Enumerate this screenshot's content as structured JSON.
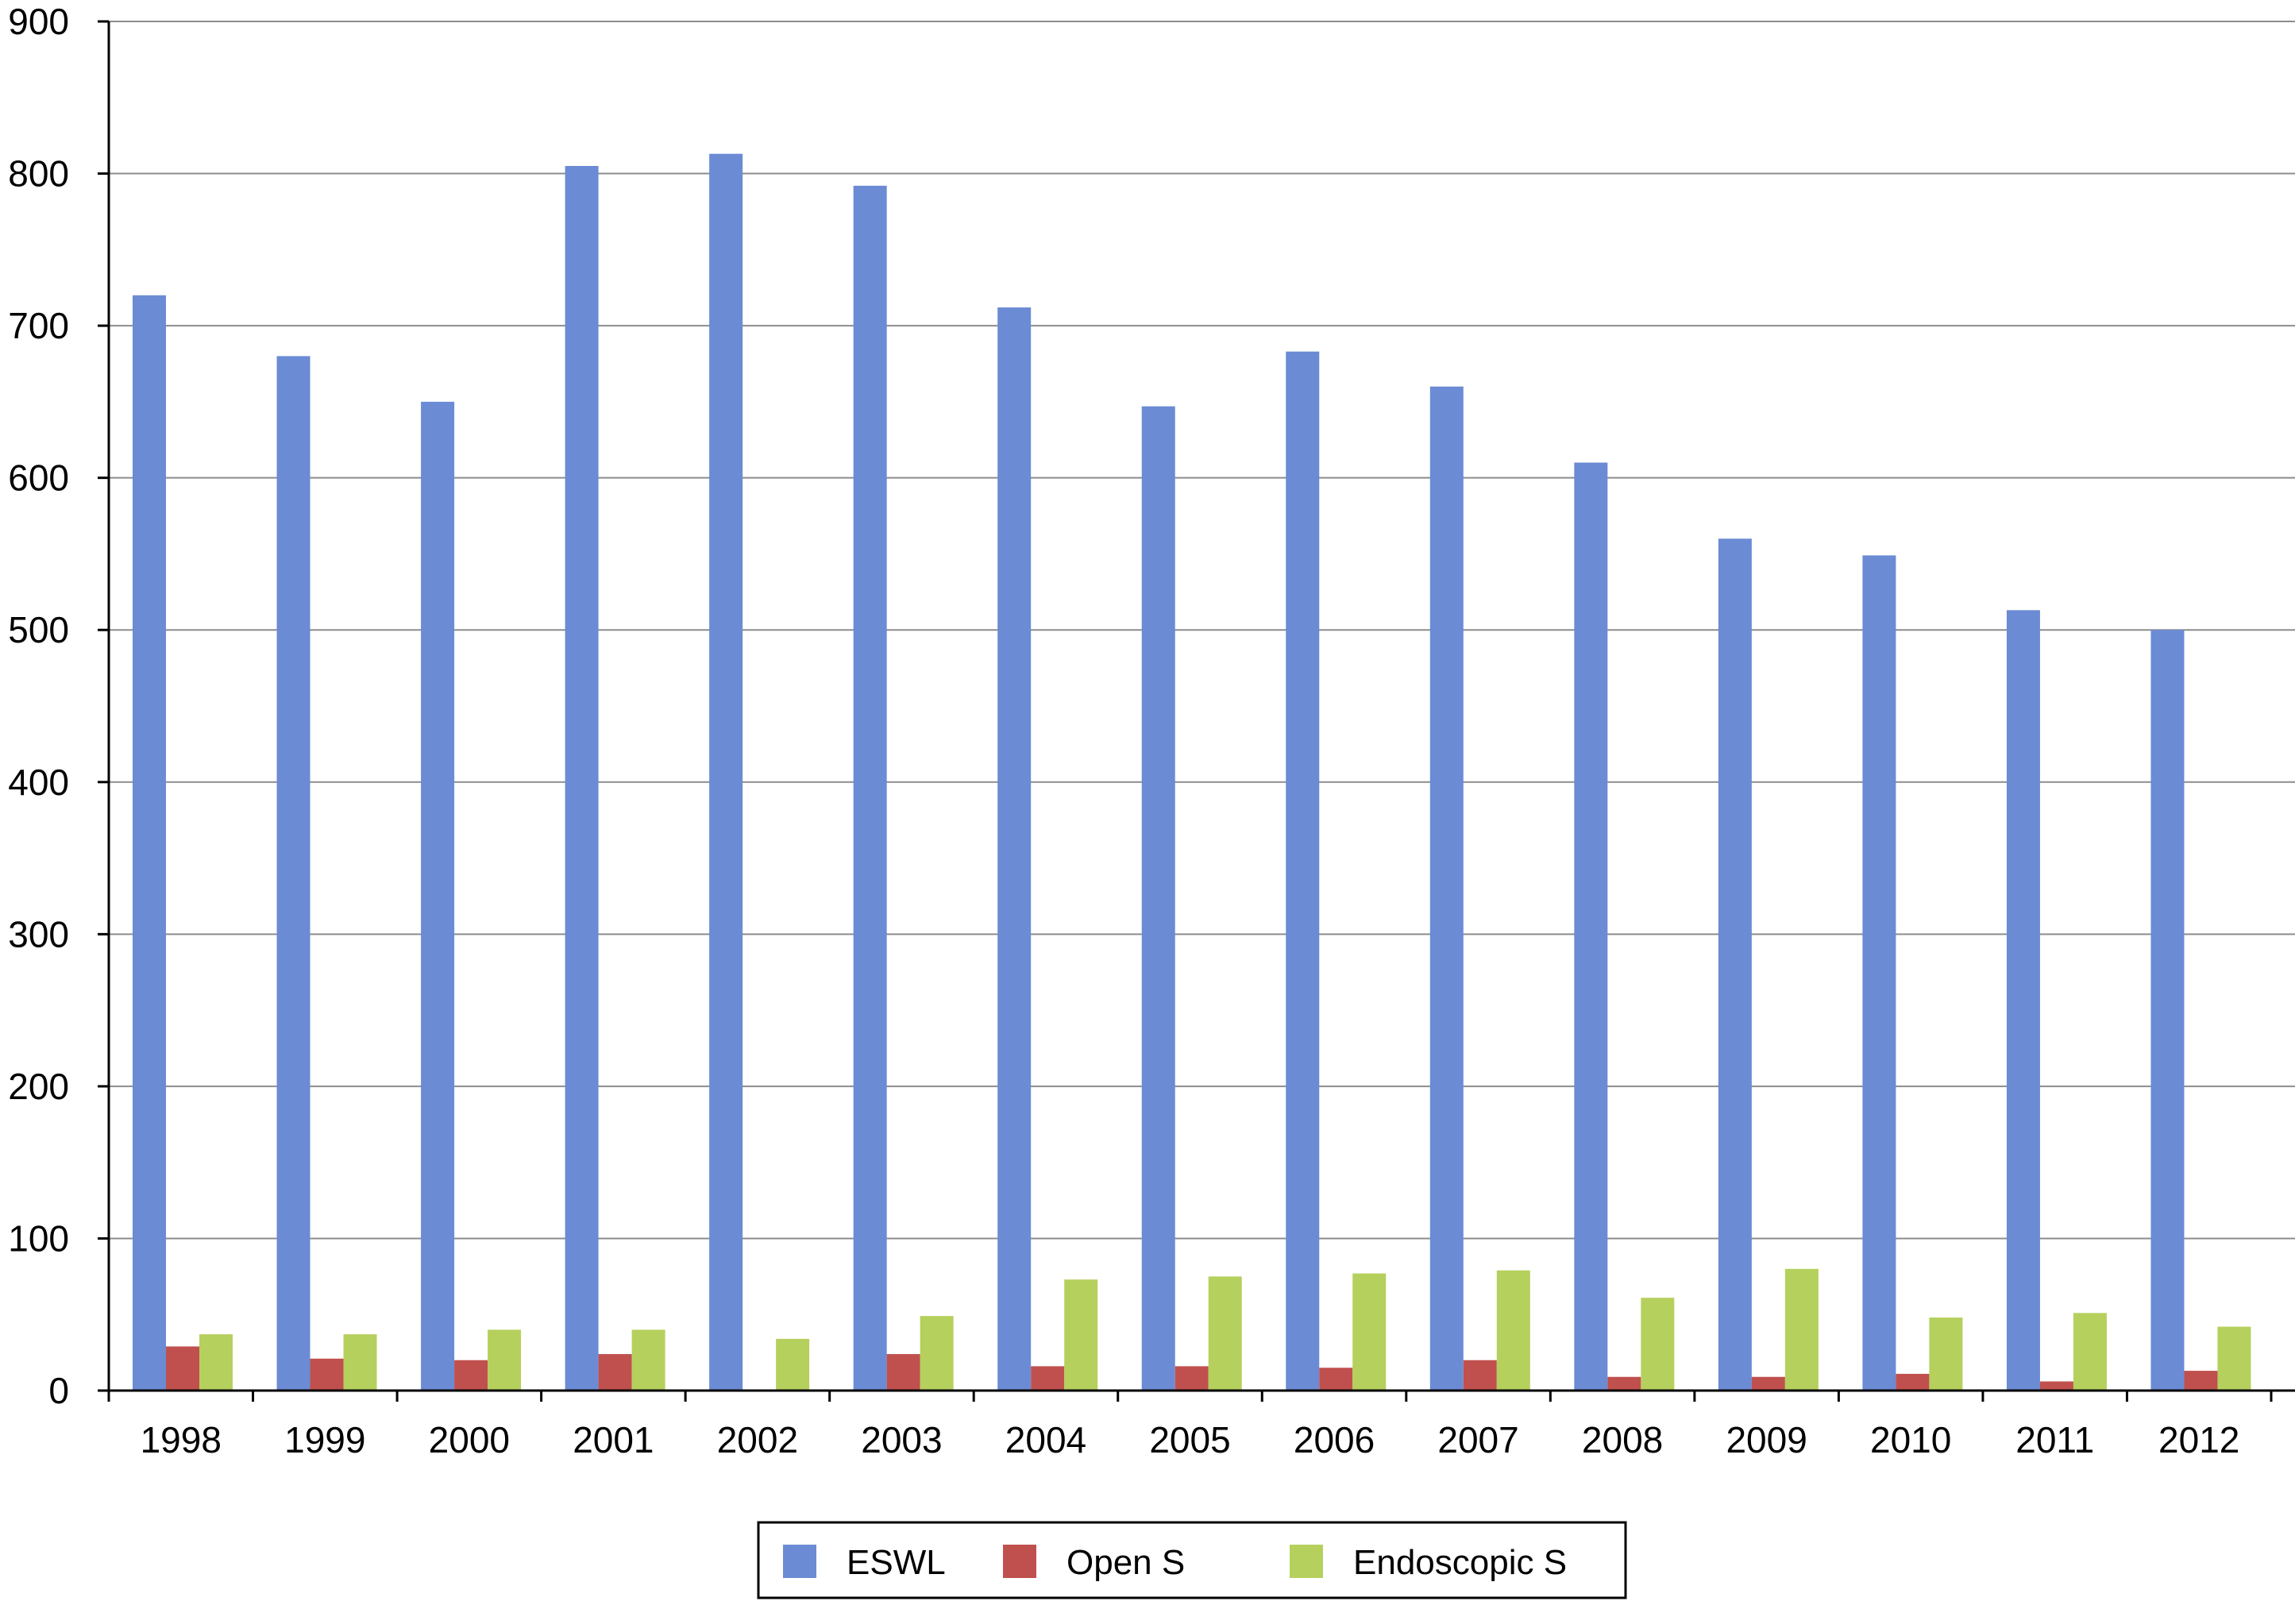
{
  "chart_data": {
    "type": "bar",
    "title": "",
    "xlabel": "",
    "ylabel": "",
    "categories": [
      "1998",
      "1999",
      "2000",
      "2001",
      "2002",
      "2003",
      "2004",
      "2005",
      "2006",
      "2007",
      "2008",
      "2009",
      "2010",
      "2011",
      "2012"
    ],
    "series": [
      {
        "name": "ESWL",
        "color": "#6b8bd4",
        "values": [
          720,
          680,
          650,
          805,
          813,
          792,
          712,
          647,
          683,
          660,
          610,
          560,
          549,
          513,
          500
        ]
      },
      {
        "name": "Open S",
        "color": "#c0504d",
        "values": [
          29,
          21,
          20,
          24,
          0,
          24,
          16,
          16,
          15,
          20,
          9,
          9,
          11,
          6,
          13
        ]
      },
      {
        "name": "Endoscopic S",
        "color": "#b5d05d",
        "values": [
          37,
          37,
          40,
          40,
          34,
          49,
          73,
          75,
          77,
          79,
          61,
          80,
          48,
          51,
          42
        ]
      }
    ],
    "ylim": [
      0,
      900
    ],
    "yticks": [
      "0",
      "100",
      "200",
      "300",
      "400",
      "500",
      "600",
      "700",
      "800",
      "900"
    ],
    "grid": true,
    "legend": "bottom-center"
  }
}
